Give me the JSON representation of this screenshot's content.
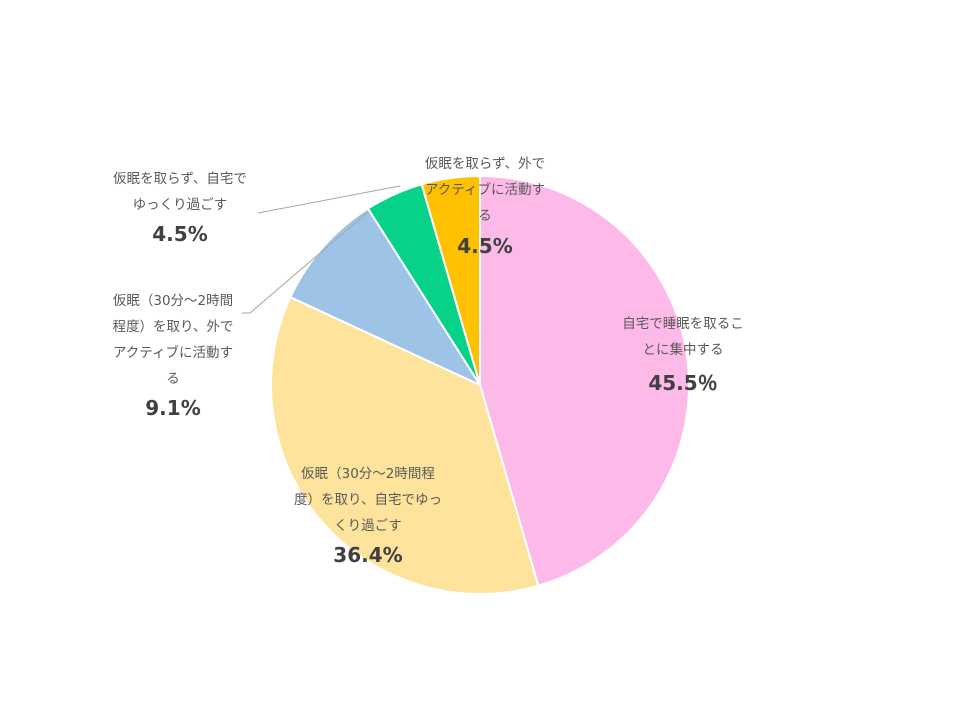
{
  "chart_data": {
    "type": "pie",
    "title": "",
    "slices": [
      {
        "label_lines": [
          "自宅で睡眠を取るこ",
          "とに集中する"
        ],
        "value": 45.5,
        "value_label": "45.5％",
        "color": "#FDB9E8"
      },
      {
        "label_lines": [
          "仮眠（30分～2時間程",
          "度）を取り、自宅でゆっ",
          "くり過ごす"
        ],
        "value": 36.4,
        "value_label": "36.4%",
        "color": "#FEE39C"
      },
      {
        "label_lines": [
          "仮眠（30分～2時間",
          "程度）を取り、外で",
          "アクティブに活動す",
          "る"
        ],
        "value": 9.1,
        "value_label": "9.1%",
        "color": "#9DC3E6"
      },
      {
        "label_lines": [
          "仮眠を取らず、自宅で",
          "ゆっくり過ごす"
        ],
        "value": 4.5,
        "value_label": "4.5%",
        "color": "#07D287"
      },
      {
        "label_lines": [
          "仮眠を取らず、外で",
          "アクティブに活動す",
          "る"
        ],
        "value": 4.5,
        "value_label": "4.5%",
        "color": "#FFC000"
      }
    ],
    "start_angle": "12 o'clock",
    "direction": "clockwise",
    "legend": "none",
    "slice_border_color": "#FFFFFF",
    "leader_line_color": "#A6A6A6"
  }
}
